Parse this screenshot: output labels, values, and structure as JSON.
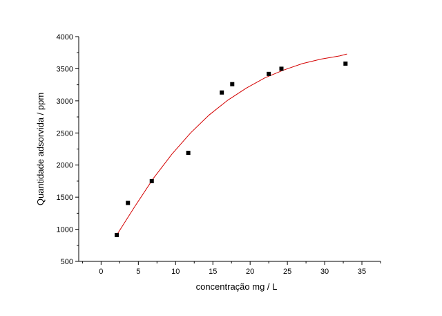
{
  "chart_data": {
    "type": "scatter",
    "xlabel": "concentração mg / L",
    "ylabel": "Quantidade adsorvida / ppm",
    "xlim": [
      -3,
      37.5
    ],
    "ylim": [
      500,
      4000
    ],
    "x_ticks": [
      0,
      5,
      10,
      15,
      20,
      25,
      30,
      35
    ],
    "y_ticks": [
      500,
      1000,
      1500,
      2000,
      2500,
      3000,
      3500,
      4000
    ],
    "x_minor_step": 2.5,
    "y_minor_step": 250,
    "grid": false,
    "legend": "none",
    "points": [
      {
        "x": 2.1,
        "y": 910
      },
      {
        "x": 3.6,
        "y": 1410
      },
      {
        "x": 6.8,
        "y": 1750
      },
      {
        "x": 11.7,
        "y": 2190
      },
      {
        "x": 16.2,
        "y": 3130
      },
      {
        "x": 17.6,
        "y": 3260
      },
      {
        "x": 22.5,
        "y": 3420
      },
      {
        "x": 24.2,
        "y": 3500
      },
      {
        "x": 32.8,
        "y": 3580
      }
    ],
    "fit_curve": [
      {
        "x": 2.1,
        "y": 910
      },
      {
        "x": 4.5,
        "y": 1350
      },
      {
        "x": 7.0,
        "y": 1790
      },
      {
        "x": 9.5,
        "y": 2170
      },
      {
        "x": 12.0,
        "y": 2500
      },
      {
        "x": 14.5,
        "y": 2780
      },
      {
        "x": 17.0,
        "y": 3010
      },
      {
        "x": 19.5,
        "y": 3200
      },
      {
        "x": 22.0,
        "y": 3360
      },
      {
        "x": 24.5,
        "y": 3480
      },
      {
        "x": 27.0,
        "y": 3580
      },
      {
        "x": 29.5,
        "y": 3650
      },
      {
        "x": 32.0,
        "y": 3700
      },
      {
        "x": 33.0,
        "y": 3730
      }
    ],
    "marker_color": "#000000",
    "fit_color": "#d40000"
  }
}
